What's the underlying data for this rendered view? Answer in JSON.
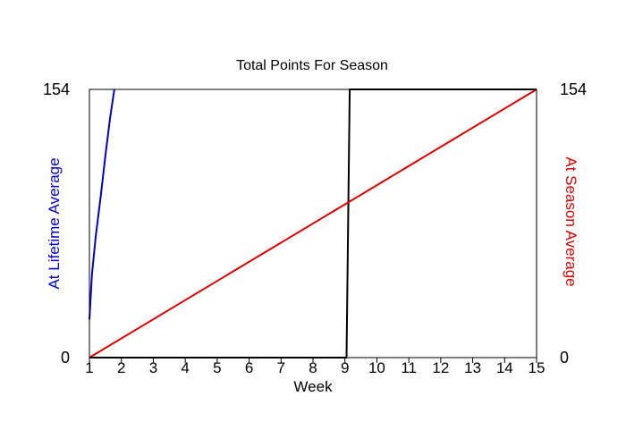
{
  "chart_data": {
    "type": "line",
    "title": "Total Points For Season",
    "xlabel": "Week",
    "ylabel_left": "At Lifetime Average",
    "ylabel_right": "At Season Average",
    "xlim": [
      1,
      15
    ],
    "ylim": [
      0,
      154
    ],
    "x_ticks": [
      "1",
      "2",
      "3",
      "4",
      "5",
      "6",
      "7",
      "8",
      "9",
      "10",
      "11",
      "12",
      "13",
      "14",
      "15"
    ],
    "y_ticks_left": [
      "0",
      "154"
    ],
    "y_ticks_right": [
      "0",
      "154"
    ],
    "grid": false,
    "series": [
      {
        "color": "#0000cc",
        "x": [
          1,
          1.08,
          1.2,
          1.35,
          1.5,
          1.65,
          1.78
        ],
        "y": [
          22,
          48,
          70,
          92,
          116,
          138,
          154
        ]
      },
      {
        "color": "#000000",
        "x": [
          1,
          9.05,
          9.15,
          15
        ],
        "y": [
          0,
          0,
          154,
          154
        ]
      },
      {
        "color": "#dd0000",
        "x": [
          1,
          15
        ],
        "y": [
          0,
          154
        ]
      }
    ],
    "colors": {
      "left_axis_label": "#0000cc",
      "right_axis_label": "#dd0000",
      "frame": "#000000"
    }
  }
}
